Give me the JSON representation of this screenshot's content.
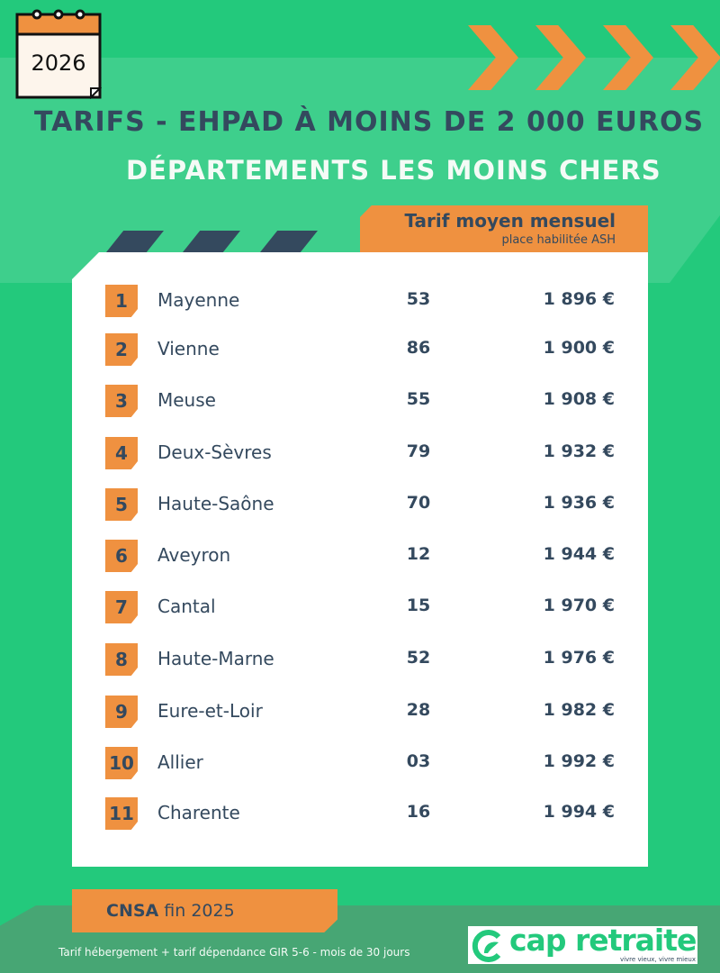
{
  "year": "2026",
  "title": "TARIFS - EHPAD À MOINS DE 2 000 EUROS",
  "subtitle": "DÉPARTEMENTS LES MOINS CHERS",
  "header": {
    "main": "Tarif moyen mensuel",
    "sub": "place habilitée ASH"
  },
  "rows": [
    {
      "rank": "1",
      "name": "Mayenne",
      "code": "53",
      "price": "1 896 €"
    },
    {
      "rank": "2",
      "name": "Vienne",
      "code": "86",
      "price": "1 900 €"
    },
    {
      "rank": "3",
      "name": "Meuse",
      "code": "55",
      "price": "1 908 €"
    },
    {
      "rank": "4",
      "name": "Deux-Sèvres",
      "code": "79",
      "price": "1 932 €"
    },
    {
      "rank": "5",
      "name": "Haute-Saône",
      "code": "70",
      "price": "1 936 €"
    },
    {
      "rank": "6",
      "name": "Aveyron",
      "code": "12",
      "price": "1 944 €"
    },
    {
      "rank": "7",
      "name": "Cantal",
      "code": "15",
      "price": "1 970 €"
    },
    {
      "rank": "8",
      "name": "Haute-Marne",
      "code": "52",
      "price": "1 976 €"
    },
    {
      "rank": "9",
      "name": "Eure-et-Loir",
      "code": "28",
      "price": "1 982 €"
    },
    {
      "rank": "10",
      "name": "Allier",
      "code": "03",
      "price": "1 992 €"
    },
    {
      "rank": "11",
      "name": "Charente",
      "code": "16",
      "price": "1 994 €"
    }
  ],
  "source": {
    "bold": "CNSA",
    "rest": " fin 2025"
  },
  "footnote": "Tarif hébergement + tarif dépendance GIR 5-6 - mois de 30 jours",
  "logo": {
    "name": "cap retraite",
    "tagline": "vivre vieux, vivre mieux"
  },
  "colors": {
    "green": "#23c97c",
    "light_green": "#3ecf8c",
    "orange": "#ef9140",
    "slate": "#34495e"
  }
}
